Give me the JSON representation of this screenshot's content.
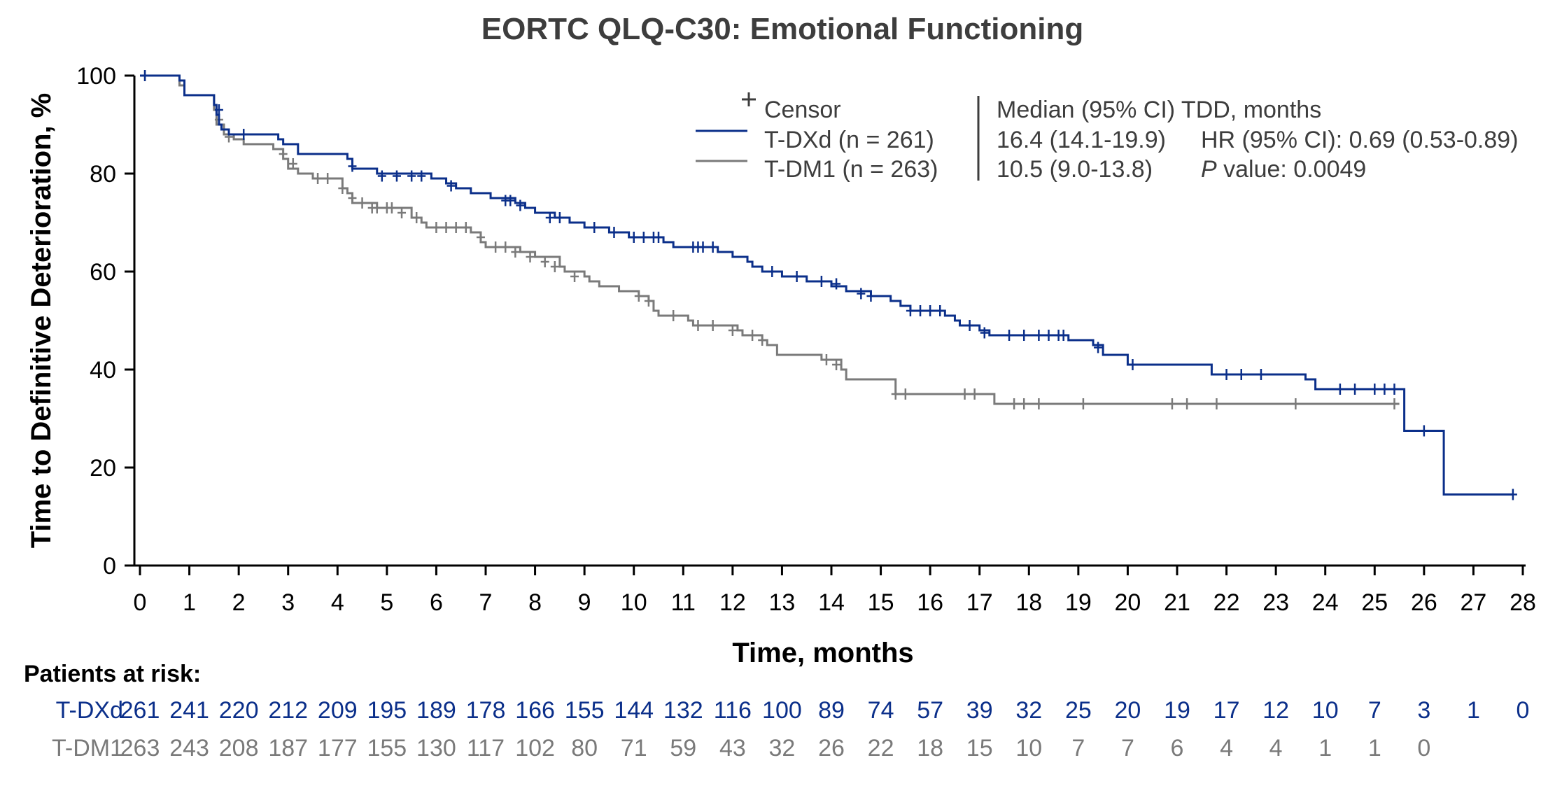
{
  "chart_data": {
    "type": "line",
    "step": true,
    "title": "EORTC QLQ-C30: Emotional Functioning",
    "xlabel": "Time, months",
    "ylabel": "Time to Definitive Deterioration, %",
    "xlim": [
      0,
      28
    ],
    "ylim": [
      0,
      100
    ],
    "x_ticks": [
      "0",
      "1",
      "2",
      "3",
      "4",
      "5",
      "6",
      "7",
      "8",
      "9",
      "10",
      "11",
      "12",
      "13",
      "14",
      "15",
      "16",
      "17",
      "18",
      "19",
      "20",
      "21",
      "22",
      "23",
      "24",
      "25",
      "26",
      "27",
      "28"
    ],
    "y_ticks": [
      "0",
      "20",
      "40",
      "60",
      "80",
      "100"
    ],
    "legend": {
      "censor_label": "Censor",
      "header": "Median (95% CI) TDD, months",
      "entries": [
        {
          "label": "T-DXd (n = 261)",
          "median": "16.4 (14.1-19.9)",
          "stat": "HR (95% CI): 0.69 (0.53-0.89)"
        },
        {
          "label": "T-DM1 (n = 263)",
          "median": "10.5 (9.0-13.8)",
          "stat_italic": "P",
          "stat": " value: 0.0049"
        }
      ]
    },
    "series": [
      {
        "name": "T-DXd",
        "color": "#0b2f8a",
        "steps": [
          [
            0,
            100
          ],
          [
            0.8,
            99
          ],
          [
            0.9,
            96
          ],
          [
            1.5,
            94
          ],
          [
            1.55,
            92
          ],
          [
            1.6,
            90
          ],
          [
            1.65,
            89
          ],
          [
            1.8,
            88
          ],
          [
            2.8,
            87
          ],
          [
            2.9,
            86
          ],
          [
            3.2,
            84
          ],
          [
            4.2,
            83
          ],
          [
            4.3,
            81
          ],
          [
            4.8,
            80
          ],
          [
            5.9,
            79
          ],
          [
            6.2,
            78
          ],
          [
            6.4,
            77
          ],
          [
            6.7,
            76
          ],
          [
            7.1,
            75
          ],
          [
            7.6,
            74
          ],
          [
            7.8,
            73
          ],
          [
            8.0,
            72
          ],
          [
            8.4,
            71
          ],
          [
            8.7,
            70
          ],
          [
            9.0,
            69
          ],
          [
            9.5,
            68
          ],
          [
            9.9,
            67
          ],
          [
            10.6,
            66
          ],
          [
            10.8,
            65
          ],
          [
            11.7,
            64
          ],
          [
            12.0,
            63
          ],
          [
            12.3,
            62
          ],
          [
            12.4,
            61
          ],
          [
            12.6,
            60
          ],
          [
            13.0,
            59
          ],
          [
            13.5,
            58
          ],
          [
            14.0,
            57
          ],
          [
            14.3,
            56
          ],
          [
            14.8,
            55
          ],
          [
            15.2,
            54
          ],
          [
            15.4,
            53
          ],
          [
            15.6,
            52
          ],
          [
            16.3,
            51
          ],
          [
            16.5,
            50
          ],
          [
            16.6,
            49
          ],
          [
            17.0,
            48
          ],
          [
            17.2,
            47
          ],
          [
            18.8,
            46
          ],
          [
            19.3,
            45
          ],
          [
            19.5,
            43
          ],
          [
            20.0,
            41
          ],
          [
            21.7,
            39
          ],
          [
            23.6,
            38
          ],
          [
            23.8,
            36
          ],
          [
            25.6,
            27.5
          ],
          [
            26.4,
            14.5
          ],
          [
            27.8,
            14.5
          ]
        ],
        "censors": [
          [
            0.1,
            100
          ],
          [
            1.6,
            93
          ],
          [
            2.1,
            88
          ],
          [
            4.3,
            81.5
          ],
          [
            4.9,
            79.5
          ],
          [
            5.2,
            79.5
          ],
          [
            5.5,
            79.5
          ],
          [
            5.7,
            79.5
          ],
          [
            6.3,
            77.5
          ],
          [
            7.4,
            74.5
          ],
          [
            7.5,
            74.5
          ],
          [
            7.7,
            73.5
          ],
          [
            8.3,
            71
          ],
          [
            8.5,
            71
          ],
          [
            9.2,
            69
          ],
          [
            9.6,
            68
          ],
          [
            10.0,
            67
          ],
          [
            10.2,
            67
          ],
          [
            10.4,
            67
          ],
          [
            10.5,
            67
          ],
          [
            11.2,
            65
          ],
          [
            11.3,
            65
          ],
          [
            11.4,
            65
          ],
          [
            11.6,
            65
          ],
          [
            12.8,
            60
          ],
          [
            13.3,
            59
          ],
          [
            13.8,
            58
          ],
          [
            14.1,
            57.5
          ],
          [
            14.6,
            55.5
          ],
          [
            14.8,
            55
          ],
          [
            15.6,
            52
          ],
          [
            15.8,
            52
          ],
          [
            16.0,
            52
          ],
          [
            16.2,
            52
          ],
          [
            16.8,
            49
          ],
          [
            17.1,
            47.5
          ],
          [
            17.6,
            47
          ],
          [
            17.9,
            47
          ],
          [
            18.2,
            47
          ],
          [
            18.4,
            47
          ],
          [
            18.6,
            47
          ],
          [
            18.7,
            47
          ],
          [
            19.4,
            44.5
          ],
          [
            20.1,
            41
          ],
          [
            22.0,
            39
          ],
          [
            22.3,
            39
          ],
          [
            22.7,
            39
          ],
          [
            24.3,
            36
          ],
          [
            24.6,
            36
          ],
          [
            25.0,
            36
          ],
          [
            25.2,
            36
          ],
          [
            25.4,
            36
          ],
          [
            26.0,
            27.5
          ],
          [
            27.8,
            14.5
          ]
        ]
      },
      {
        "name": "T-DM1",
        "color": "#7a7a7a",
        "steps": [
          [
            0,
            100
          ],
          [
            0.8,
            98
          ],
          [
            0.9,
            96
          ],
          [
            1.5,
            93
          ],
          [
            1.55,
            90
          ],
          [
            1.7,
            88
          ],
          [
            1.9,
            87
          ],
          [
            2.1,
            86
          ],
          [
            2.7,
            85
          ],
          [
            2.9,
            83
          ],
          [
            3.0,
            81
          ],
          [
            3.2,
            80
          ],
          [
            3.5,
            79
          ],
          [
            4.1,
            77
          ],
          [
            4.2,
            76
          ],
          [
            4.3,
            74
          ],
          [
            4.8,
            73
          ],
          [
            5.5,
            71
          ],
          [
            5.7,
            70
          ],
          [
            5.8,
            69
          ],
          [
            6.7,
            68
          ],
          [
            6.9,
            66
          ],
          [
            7.0,
            65
          ],
          [
            7.7,
            64
          ],
          [
            8.0,
            63
          ],
          [
            8.5,
            61
          ],
          [
            8.6,
            60
          ],
          [
            9.0,
            59
          ],
          [
            9.1,
            58
          ],
          [
            9.3,
            57
          ],
          [
            9.7,
            56
          ],
          [
            10.1,
            55
          ],
          [
            10.3,
            54
          ],
          [
            10.4,
            52
          ],
          [
            10.5,
            51
          ],
          [
            11.1,
            50
          ],
          [
            11.2,
            49
          ],
          [
            12.1,
            48
          ],
          [
            12.2,
            47
          ],
          [
            12.6,
            46
          ],
          [
            12.7,
            45
          ],
          [
            12.9,
            43
          ],
          [
            13.8,
            42
          ],
          [
            14.2,
            40
          ],
          [
            14.3,
            38
          ],
          [
            15.3,
            35
          ],
          [
            17.3,
            33
          ],
          [
            25.5,
            33
          ]
        ],
        "censors": [
          [
            0.1,
            100
          ],
          [
            1.6,
            91
          ],
          [
            1.8,
            87.5
          ],
          [
            2.9,
            84
          ],
          [
            3.1,
            82
          ],
          [
            3.6,
            79
          ],
          [
            3.8,
            79
          ],
          [
            4.1,
            77
          ],
          [
            4.3,
            75
          ],
          [
            4.5,
            74
          ],
          [
            4.7,
            73
          ],
          [
            4.8,
            73
          ],
          [
            5.0,
            73
          ],
          [
            5.1,
            73
          ],
          [
            5.3,
            72
          ],
          [
            5.6,
            71
          ],
          [
            6.0,
            69
          ],
          [
            6.2,
            69
          ],
          [
            6.4,
            69
          ],
          [
            6.6,
            69
          ],
          [
            6.9,
            67
          ],
          [
            7.2,
            65
          ],
          [
            7.4,
            65
          ],
          [
            7.6,
            64
          ],
          [
            7.9,
            63
          ],
          [
            8.2,
            62
          ],
          [
            8.4,
            61
          ],
          [
            8.8,
            59
          ],
          [
            10.1,
            55
          ],
          [
            10.3,
            54
          ],
          [
            10.8,
            51
          ],
          [
            11.3,
            49
          ],
          [
            11.6,
            49
          ],
          [
            12.0,
            48
          ],
          [
            12.4,
            47
          ],
          [
            12.6,
            46
          ],
          [
            13.9,
            42
          ],
          [
            14.1,
            41
          ],
          [
            15.3,
            35
          ],
          [
            15.5,
            35
          ],
          [
            16.7,
            35
          ],
          [
            16.9,
            35
          ],
          [
            17.7,
            33
          ],
          [
            17.9,
            33
          ],
          [
            18.2,
            33
          ],
          [
            19.1,
            33
          ],
          [
            20.9,
            33
          ],
          [
            21.2,
            33
          ],
          [
            21.8,
            33
          ],
          [
            23.4,
            33
          ],
          [
            25.4,
            33
          ]
        ]
      }
    ],
    "risk_table": {
      "title": "Patients at risk:",
      "rows": [
        {
          "label": "T-DXd",
          "color": "#0b2f8a",
          "values": [
            "261",
            "241",
            "220",
            "212",
            "209",
            "195",
            "189",
            "178",
            "166",
            "155",
            "144",
            "132",
            "116",
            "100",
            "89",
            "74",
            "57",
            "39",
            "32",
            "25",
            "20",
            "19",
            "17",
            "12",
            "10",
            "7",
            "3",
            "1",
            "0"
          ]
        },
        {
          "label": "T-DM1",
          "color": "#7a7a7a",
          "values": [
            "263",
            "243",
            "208",
            "187",
            "177",
            "155",
            "130",
            "117",
            "102",
            "80",
            "71",
            "59",
            "43",
            "32",
            "26",
            "22",
            "18",
            "15",
            "10",
            "7",
            "7",
            "6",
            "4",
            "4",
            "1",
            "1",
            "0"
          ]
        }
      ]
    }
  }
}
